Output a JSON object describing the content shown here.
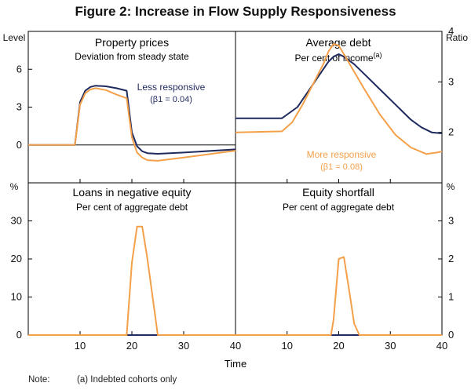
{
  "title": "Figure 2: Increase in Flow Supply Responsiveness",
  "x_axis_label": "Time",
  "left_unit_top": "Level",
  "right_unit_top": "Ratio",
  "left_unit_bottom": "%",
  "right_unit_bottom": "%",
  "colors": {
    "less": "#1f2a5e",
    "more": "#f4a04a",
    "axis": "#000000"
  },
  "note": {
    "label": "Note:",
    "text": "(a) Indebted cohorts only"
  },
  "chart_data": [
    {
      "type": "line",
      "panel": "top-left",
      "title": "Property prices",
      "subtitle": "Deviation from steady state",
      "x_ticks": [
        10,
        20,
        30,
        40
      ],
      "y_ticks": [
        0,
        3,
        6
      ],
      "x_range": [
        0,
        40
      ],
      "ylim": [
        -3,
        9
      ],
      "annotation": {
        "label": "Less responsive",
        "sub": "(β1 = 0.04)"
      },
      "series": [
        {
          "name": "Less responsive",
          "x": [
            0,
            9,
            10,
            11,
            12,
            13,
            15,
            17,
            18,
            19,
            20,
            21,
            22,
            23,
            25,
            30,
            40
          ],
          "y": [
            0,
            0,
            3.4,
            4.3,
            4.6,
            4.7,
            4.65,
            4.5,
            4.4,
            4.3,
            1.0,
            -0.1,
            -0.5,
            -0.65,
            -0.7,
            -0.6,
            -0.35
          ]
        },
        {
          "name": "More responsive",
          "x": [
            0,
            9,
            10,
            11,
            12,
            13,
            15,
            17,
            18,
            19,
            20,
            21,
            22,
            23,
            25,
            30,
            40
          ],
          "y": [
            0,
            0,
            3.2,
            4.1,
            4.4,
            4.5,
            4.35,
            4.0,
            3.85,
            3.7,
            0.6,
            -0.6,
            -1.0,
            -1.2,
            -1.25,
            -1.0,
            -0.45
          ]
        }
      ]
    },
    {
      "type": "line",
      "panel": "top-right",
      "title": "Average debt",
      "subtitle": "Per cent of income",
      "subtitle_note": "(a)",
      "x_ticks": [
        10,
        20,
        30,
        40
      ],
      "y_ticks": [
        2,
        3,
        4
      ],
      "x_range": [
        0,
        40
      ],
      "ylim": [
        1,
        4
      ],
      "annotation": {
        "label": "More responsive",
        "sub": "(β1 = 0.08)"
      },
      "series": [
        {
          "name": "Less responsive",
          "x": [
            0,
            9,
            12,
            14,
            16,
            18,
            19,
            20,
            21,
            23,
            25,
            28,
            31,
            34,
            36,
            38,
            40
          ],
          "y": [
            2.28,
            2.28,
            2.5,
            2.8,
            3.1,
            3.4,
            3.5,
            3.55,
            3.5,
            3.35,
            3.15,
            2.85,
            2.55,
            2.25,
            2.1,
            2.0,
            1.98
          ]
        },
        {
          "name": "More responsive",
          "x": [
            0,
            9,
            11,
            13,
            15,
            17,
            18,
            19,
            20,
            21,
            23,
            25,
            28,
            31,
            34,
            37,
            39,
            40
          ],
          "y": [
            2.0,
            2.02,
            2.2,
            2.55,
            2.95,
            3.35,
            3.6,
            3.75,
            3.72,
            3.55,
            3.2,
            2.85,
            2.35,
            1.95,
            1.7,
            1.57,
            1.6,
            1.62
          ]
        }
      ]
    },
    {
      "type": "line",
      "panel": "bottom-left",
      "title": "Loans in negative equity",
      "subtitle": "Per cent of aggregate debt",
      "x_ticks": [
        10,
        20,
        30,
        40
      ],
      "y_ticks": [
        0,
        10,
        20,
        30
      ],
      "x_range": [
        0,
        40
      ],
      "ylim": [
        0,
        40
      ],
      "series": [
        {
          "name": "Less responsive",
          "x": [
            0,
            40
          ],
          "y": [
            0,
            0
          ]
        },
        {
          "name": "More responsive",
          "x": [
            0,
            19,
            20,
            21,
            22,
            23,
            24,
            25,
            40
          ],
          "y": [
            0,
            0,
            19,
            28.5,
            28.5,
            20,
            10,
            0,
            0
          ]
        }
      ]
    },
    {
      "type": "line",
      "panel": "bottom-right",
      "title": "Equity shortfall",
      "subtitle": "Per cent of aggregate debt",
      "x_ticks": [
        10,
        20,
        30,
        40
      ],
      "y_ticks": [
        0,
        1,
        2,
        3
      ],
      "x_range": [
        0,
        40
      ],
      "ylim": [
        0,
        4
      ],
      "series": [
        {
          "name": "Less responsive",
          "x": [
            0,
            40
          ],
          "y": [
            0,
            0
          ]
        },
        {
          "name": "More responsive",
          "x": [
            0,
            18.5,
            19,
            20,
            21,
            22,
            23,
            24,
            25,
            40
          ],
          "y": [
            0,
            0,
            0.4,
            2.0,
            2.05,
            1.2,
            0.3,
            0,
            0,
            0
          ]
        }
      ]
    }
  ]
}
